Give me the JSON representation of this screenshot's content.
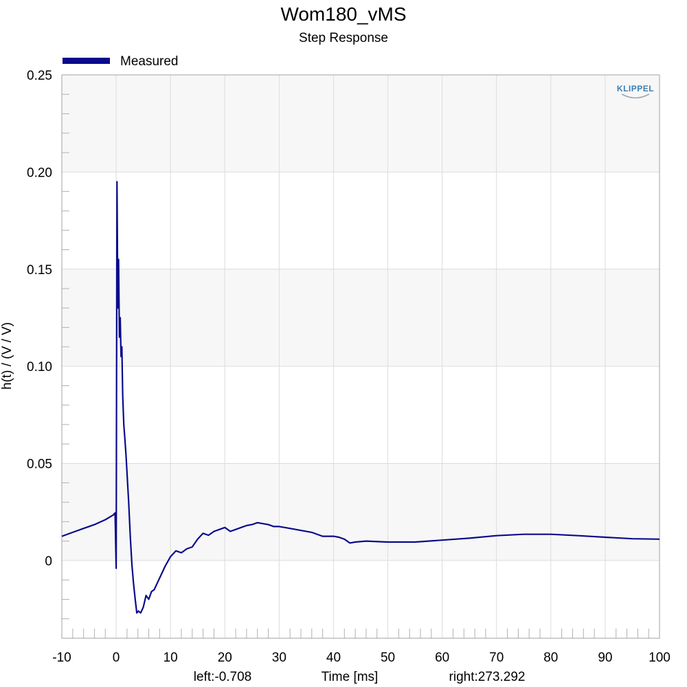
{
  "chart_data": {
    "type": "line",
    "title": "Wom180_vMS",
    "subtitle": "Step Response",
    "xlabel": "Time [ms]",
    "ylabel": "h(t) / (V / V)",
    "xlim": [
      -10,
      100
    ],
    "ylim": [
      -0.04,
      0.25
    ],
    "x_ticks": [
      -10,
      0,
      10,
      20,
      30,
      40,
      50,
      60,
      70,
      80,
      90,
      100
    ],
    "x_tick_labels": [
      "-10",
      "0",
      "10",
      "20",
      "30",
      "40",
      "50",
      "60",
      "70",
      "80",
      "90",
      "100"
    ],
    "y_ticks": [
      0,
      0.05,
      0.1,
      0.15,
      0.2,
      0.25
    ],
    "y_tick_labels": [
      "0",
      "0.05",
      "0.10",
      "0.15",
      "0.20",
      "0.25"
    ],
    "grid": true,
    "legend_position": "top-left",
    "cursor_left": "left:-0.708",
    "cursor_right": "right:273.292",
    "logo": "KLIPPEL",
    "colors": {
      "series": "#0a0a8c",
      "band": "#f7f7f7",
      "grid": "#dcdcdc",
      "logo": "#3a7fb5"
    },
    "series": [
      {
        "name": "Measured",
        "x": [
          -10,
          -8,
          -6,
          -4,
          -2,
          -0.5,
          -0.2,
          0.0,
          0.15,
          0.3,
          0.45,
          0.6,
          0.75,
          0.9,
          1.05,
          1.2,
          1.4,
          1.6,
          1.8,
          2.0,
          2.3,
          2.6,
          2.9,
          3.2,
          3.5,
          3.8,
          4.1,
          4.5,
          5.0,
          5.5,
          6.0,
          6.5,
          7.0,
          7.5,
          8.0,
          9.0,
          10.0,
          11.0,
          12.0,
          13.0,
          14.0,
          15.0,
          16.0,
          17.0,
          18.0,
          19.0,
          20.0,
          21.0,
          22.0,
          23.0,
          24.0,
          25.0,
          26.0,
          27.0,
          28.0,
          29.0,
          30.0,
          31.0,
          32.0,
          34.0,
          36.0,
          38.0,
          40.0,
          41.0,
          42.0,
          43.0,
          44.0,
          46.0,
          50.0,
          55.0,
          60.0,
          65.0,
          70.0,
          75.0,
          80.0,
          85.0,
          90.0,
          95.0,
          100.0
        ],
        "values": [
          0.0125,
          0.0145,
          0.0165,
          0.0185,
          0.021,
          0.0235,
          0.0245,
          -0.004,
          0.195,
          0.13,
          0.155,
          0.115,
          0.125,
          0.105,
          0.11,
          0.085,
          0.07,
          0.063,
          0.055,
          0.045,
          0.03,
          0.012,
          -0.002,
          -0.012,
          -0.02,
          -0.027,
          -0.026,
          -0.027,
          -0.024,
          -0.018,
          -0.02,
          -0.016,
          -0.015,
          -0.012,
          -0.009,
          -0.003,
          0.002,
          0.005,
          0.004,
          0.006,
          0.007,
          0.011,
          0.014,
          0.013,
          0.015,
          0.016,
          0.017,
          0.015,
          0.016,
          0.017,
          0.018,
          0.0185,
          0.0195,
          0.019,
          0.0185,
          0.0175,
          0.0175,
          0.017,
          0.0165,
          0.0155,
          0.0145,
          0.0125,
          0.0125,
          0.012,
          0.011,
          0.009,
          0.0095,
          0.01,
          0.0095,
          0.0095,
          0.0105,
          0.0115,
          0.0128,
          0.0135,
          0.0135,
          0.0128,
          0.012,
          0.0112,
          0.011
        ]
      }
    ]
  }
}
